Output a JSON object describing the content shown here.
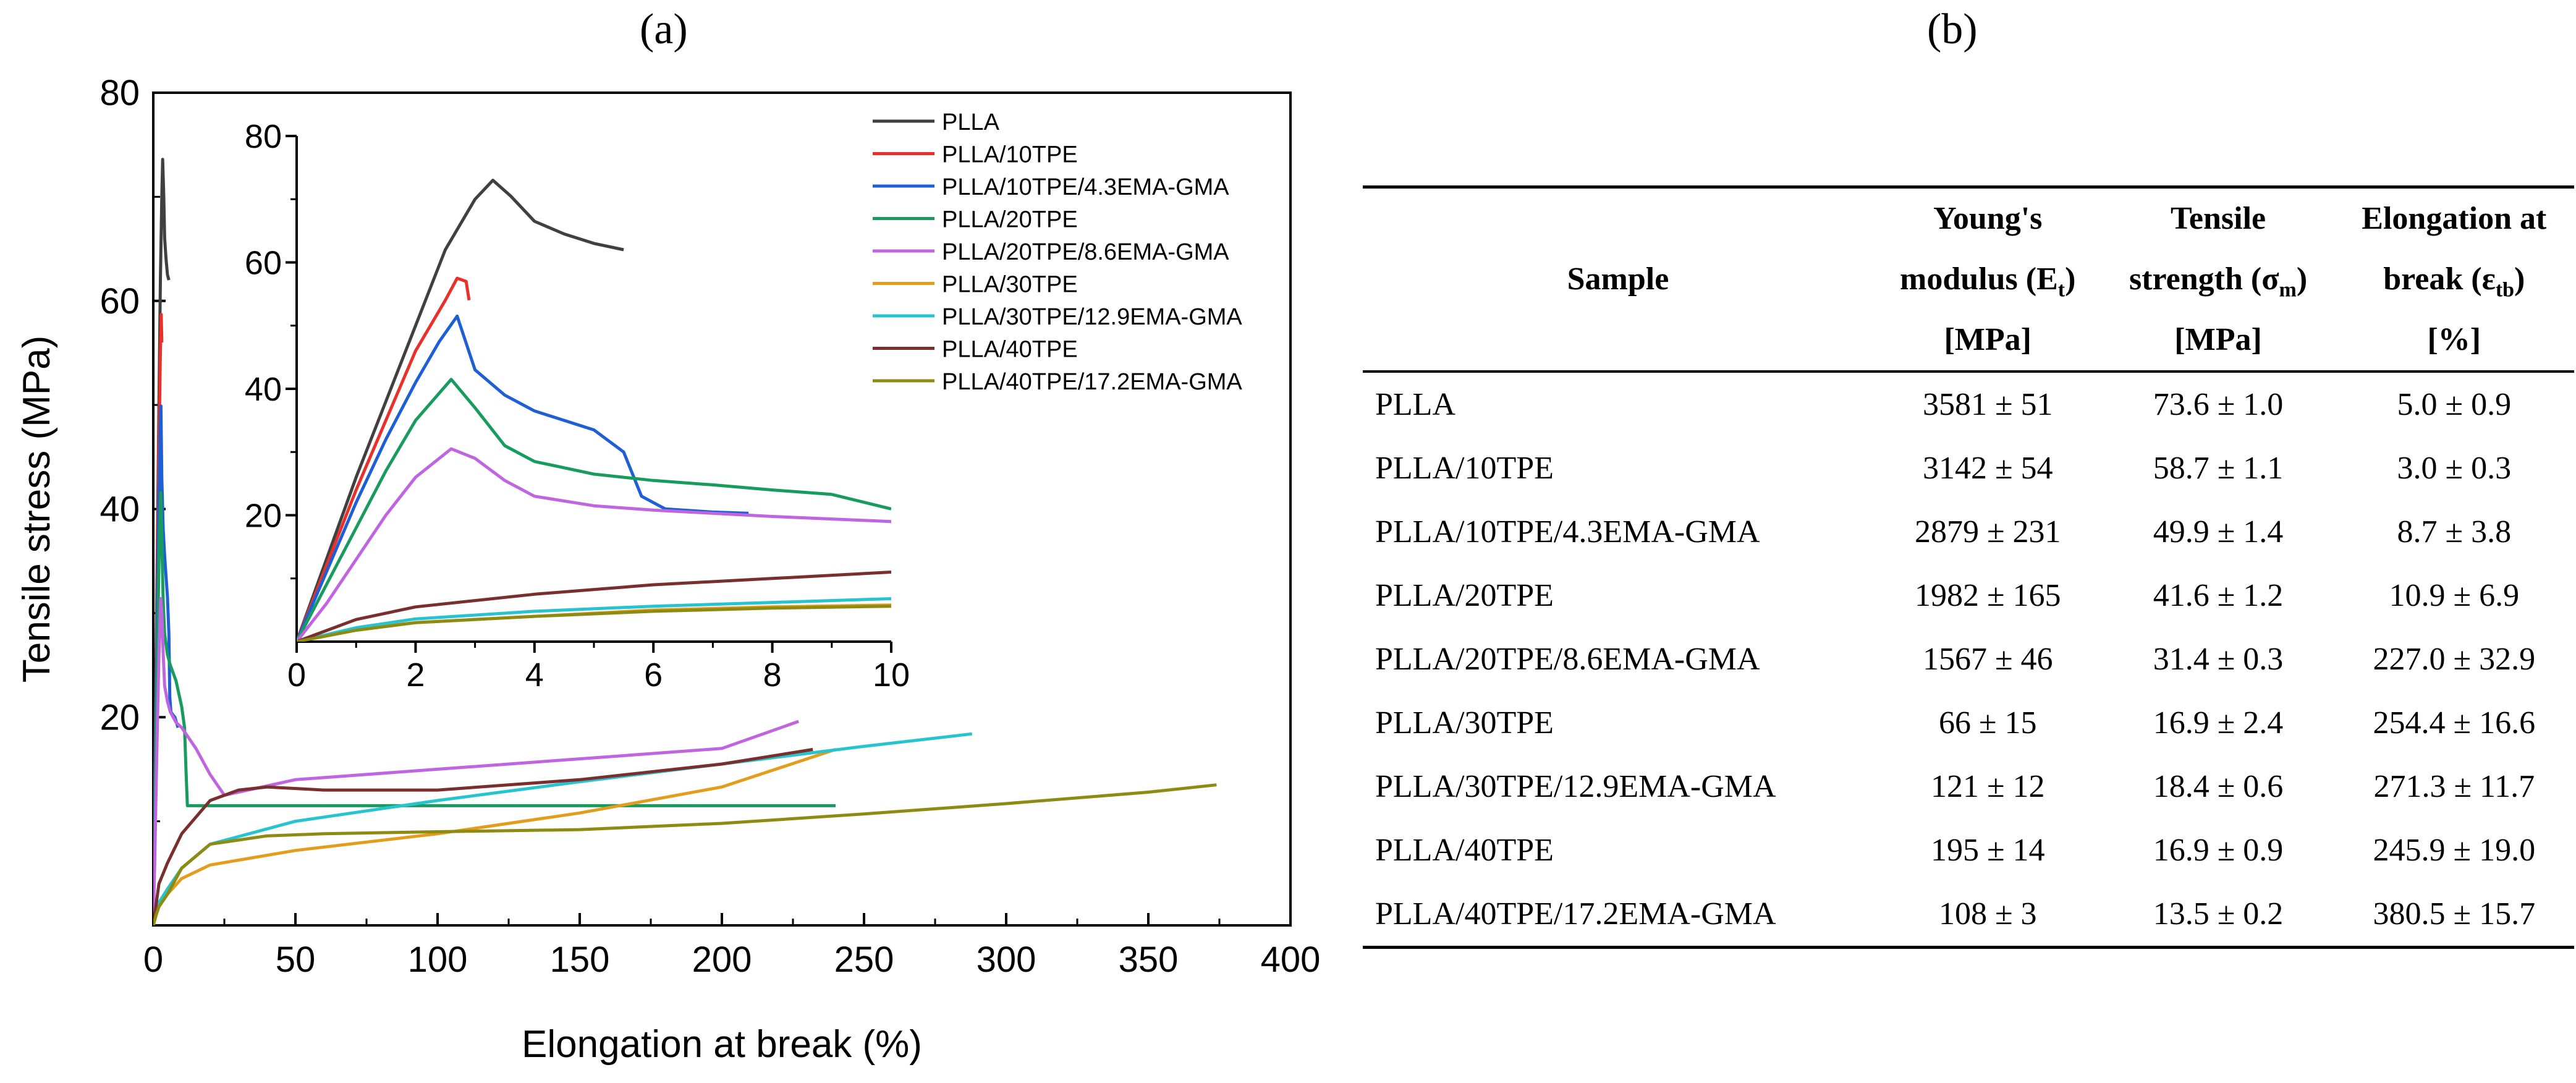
{
  "panel_labels": {
    "a": "(a)",
    "b": "(b)"
  },
  "chart_data": {
    "type": "line",
    "xlabel": "Elongation at break (%)",
    "ylabel": "Tensile stress (MPa)",
    "xlim": [
      0,
      400
    ],
    "ylim": [
      0,
      80
    ],
    "xticks": [
      0,
      50,
      100,
      150,
      200,
      250,
      300,
      350,
      400
    ],
    "yticks": [
      20,
      40,
      60,
      80
    ],
    "legend_position": "top-right",
    "series": [
      {
        "name": "PLLA",
        "color": "#404040",
        "x": [
          0,
          0.5,
          1,
          1.5,
          2,
          2.5,
          3,
          3.3,
          3.7,
          4,
          4.5,
          5,
          5.5
        ],
        "y": [
          0,
          13,
          26,
          38,
          50,
          62,
          70,
          73.6,
          70,
          66,
          64,
          62.5,
          62
        ]
      },
      {
        "name": "PLLA/10TPE",
        "color": "#e8312b",
        "x": [
          0,
          0.5,
          1,
          1.5,
          2,
          2.5,
          2.8,
          3.0
        ],
        "y": [
          0,
          12,
          24,
          35,
          46,
          55,
          58.7,
          56
        ]
      },
      {
        "name": "PLLA/10TPE/4.3EMA-GMA",
        "color": "#1f5fd6",
        "x": [
          0,
          0.5,
          1,
          1.5,
          2,
          2.5,
          2.7,
          3,
          3.5,
          4,
          4.5,
          5,
          5.5,
          5.8,
          6.2,
          7,
          7.6,
          8.7
        ],
        "y": [
          0,
          11,
          22,
          32,
          41,
          48,
          49.9,
          43,
          38,
          35.5,
          33.5,
          31.5,
          28,
          22,
          20.5,
          20.2,
          20,
          19
        ]
      },
      {
        "name": "PLLA/20TPE",
        "color": "#179c5d",
        "x": [
          0,
          0.5,
          1,
          1.5,
          2,
          2.6,
          3,
          3.5,
          4,
          5,
          6,
          8,
          10,
          11,
          11.5,
          12,
          15,
          30,
          60,
          120,
          200,
          240
        ],
        "y": [
          0,
          9,
          18,
          27,
          35,
          41.6,
          37,
          31,
          28,
          26,
          25,
          23.5,
          21,
          19,
          15,
          11.5,
          11.5,
          11.5,
          11.5,
          11.5,
          11.5,
          11.5
        ]
      },
      {
        "name": "PLLA/20TPE/8.6EMA-GMA",
        "color": "#c065e0",
        "x": [
          0,
          0.5,
          1,
          1.5,
          2,
          2.6,
          3,
          3.5,
          4,
          5,
          6,
          8,
          10,
          15,
          20,
          25,
          30,
          50,
          100,
          150,
          200,
          227
        ],
        "y": [
          0,
          6,
          13,
          20,
          26,
          31.4,
          30,
          26,
          23,
          21.5,
          20.5,
          19.5,
          19,
          17,
          14.5,
          12.5,
          12.8,
          14,
          15,
          16,
          17,
          19.6
        ]
      },
      {
        "name": "PLLA/30TPE",
        "color": "#e39d1d",
        "x": [
          0,
          1,
          2,
          5,
          10,
          20,
          50,
          100,
          150,
          200,
          240
        ],
        "y": [
          0,
          1,
          1.8,
          3,
          4.5,
          5.8,
          7.2,
          8.8,
          10.8,
          13.3,
          16.9
        ]
      },
      {
        "name": "PLLA/30TPE/12.9EMA-GMA",
        "color": "#27c4cf",
        "x": [
          0,
          1,
          2,
          5,
          10,
          20,
          50,
          100,
          150,
          200,
          250,
          288
        ],
        "y": [
          0,
          1.2,
          2.2,
          3.5,
          5.5,
          7.8,
          10,
          12,
          13.8,
          15.5,
          17.2,
          18.4
        ]
      },
      {
        "name": "PLLA/40TPE",
        "color": "#7a2f2f",
        "x": [
          0,
          1,
          2,
          5,
          10,
          20,
          30,
          40,
          60,
          100,
          150,
          200,
          232
        ],
        "y": [
          0,
          2,
          4,
          6,
          8.8,
          12,
          13,
          13.3,
          13,
          13,
          14,
          15.5,
          16.9
        ]
      },
      {
        "name": "PLLA/40TPE/17.2EMA-GMA",
        "color": "#8e8b13",
        "x": [
          0,
          1,
          2,
          5,
          10,
          20,
          40,
          60,
          100,
          150,
          200,
          250,
          300,
          350,
          374
        ],
        "y": [
          0,
          1,
          1.8,
          3,
          5.5,
          7.8,
          8.6,
          8.8,
          9,
          9.2,
          9.8,
          10.7,
          11.7,
          12.8,
          13.5
        ]
      }
    ],
    "inset": {
      "xlim": [
        0,
        10
      ],
      "ylim": [
        0,
        80
      ],
      "xticks": [
        0,
        2,
        4,
        6,
        8,
        10
      ],
      "yticks": [
        20,
        40,
        60,
        80
      ],
      "series": [
        {
          "name": "PLLA",
          "color": "#404040",
          "x": [
            0,
            0.5,
            1,
            1.5,
            2,
            2.5,
            3,
            3.3,
            3.6,
            4,
            4.5,
            5,
            5.5
          ],
          "y": [
            0,
            13,
            26,
            38,
            50,
            62,
            70,
            73,
            70.5,
            66.5,
            64.5,
            63,
            62
          ]
        },
        {
          "name": "PLLA/10TPE",
          "color": "#e8312b",
          "x": [
            0,
            0.5,
            1,
            1.5,
            2,
            2.5,
            2.7,
            2.85,
            2.9
          ],
          "y": [
            0,
            12,
            24,
            35,
            46,
            54,
            57.5,
            57,
            54
          ]
        },
        {
          "name": "PLLA/10TPE/4.3EMA-GMA",
          "color": "#1f5fd6",
          "x": [
            0,
            0.5,
            1,
            1.5,
            2,
            2.4,
            2.7,
            3,
            3.5,
            4,
            4.5,
            5,
            5.5,
            5.8,
            6.2,
            7,
            7.6
          ],
          "y": [
            0,
            11,
            22,
            32,
            41,
            47.5,
            51.5,
            43,
            39,
            36.5,
            35,
            33.5,
            30,
            23,
            21,
            20.5,
            20.3
          ]
        },
        {
          "name": "PLLA/20TPE",
          "color": "#179c5d",
          "x": [
            0,
            0.5,
            1,
            1.5,
            2,
            2.6,
            3,
            3.5,
            4,
            5,
            6,
            7,
            8,
            9,
            10
          ],
          "y": [
            0,
            9,
            18,
            27,
            35,
            41.5,
            37,
            31,
            28.5,
            26.5,
            25.5,
            24.8,
            24,
            23.3,
            21
          ]
        },
        {
          "name": "PLLA/20TPE/8.6EMA-GMA",
          "color": "#c065e0",
          "x": [
            0,
            0.5,
            1,
            1.5,
            2,
            2.6,
            3,
            3.5,
            4,
            5,
            6,
            7,
            8,
            9,
            10
          ],
          "y": [
            0,
            6,
            13,
            20,
            26,
            30.5,
            29,
            25.5,
            23,
            21.5,
            20.8,
            20.3,
            19.8,
            19.4,
            19
          ]
        },
        {
          "name": "PLLA/30TPE",
          "color": "#e39d1d",
          "x": [
            0,
            1,
            2,
            4,
            6,
            8,
            10
          ],
          "y": [
            0,
            2,
            3,
            4,
            5,
            5.5,
            5.8
          ]
        },
        {
          "name": "PLLA/30TPE/12.9EMA-GMA",
          "color": "#27c4cf",
          "x": [
            0,
            1,
            2,
            4,
            6,
            8,
            10
          ],
          "y": [
            0,
            2.2,
            3.6,
            4.8,
            5.6,
            6.2,
            6.8
          ]
        },
        {
          "name": "PLLA/40TPE",
          "color": "#7a2f2f",
          "x": [
            0,
            1,
            2,
            4,
            6,
            8,
            10
          ],
          "y": [
            0,
            3.5,
            5.5,
            7.5,
            9,
            10,
            11
          ]
        },
        {
          "name": "PLLA/40TPE/17.2EMA-GMA",
          "color": "#8e8b13",
          "x": [
            0,
            1,
            2,
            4,
            6,
            8,
            10
          ],
          "y": [
            0,
            1.8,
            3,
            4,
            4.8,
            5.3,
            5.6
          ]
        }
      ]
    }
  },
  "table": {
    "headers": {
      "sample": "Sample",
      "youngs_l1": "Young's",
      "youngs_l2": "modulus (E",
      "youngs_sub": "t",
      "youngs_l2_end": ")",
      "youngs_l3": "[MPa]",
      "tensile_l1": "Tensile",
      "tensile_l2": "strength (σ",
      "tensile_sub": "m",
      "tensile_l2_end": ")",
      "tensile_l3": "[MPa]",
      "elong_l1": "Elongation at",
      "elong_l2": "break (ε",
      "elong_sub": "tb",
      "elong_l2_end": ")",
      "elong_l3": "[%]"
    },
    "rows": [
      {
        "sample": "PLLA",
        "modulus": "3581 ± 51",
        "strength": "73.6 ± 1.0",
        "elongation": "5.0 ± 0.9"
      },
      {
        "sample": "PLLA/10TPE",
        "modulus": "3142 ± 54",
        "strength": "58.7 ± 1.1",
        "elongation": "3.0 ± 0.3"
      },
      {
        "sample": "PLLA/10TPE/4.3EMA-GMA",
        "modulus": "2879 ± 231",
        "strength": "49.9 ± 1.4",
        "elongation": "8.7 ± 3.8"
      },
      {
        "sample": "PLLA/20TPE",
        "modulus": "1982 ± 165",
        "strength": "41.6 ± 1.2",
        "elongation": "10.9 ± 6.9"
      },
      {
        "sample": "PLLA/20TPE/8.6EMA-GMA",
        "modulus": "1567 ± 46",
        "strength": "31.4 ± 0.3",
        "elongation": "227.0 ± 32.9"
      },
      {
        "sample": "PLLA/30TPE",
        "modulus": "66 ± 15",
        "strength": "16.9 ± 2.4",
        "elongation": "254.4 ± 16.6"
      },
      {
        "sample": "PLLA/30TPE/12.9EMA-GMA",
        "modulus": "121 ± 12",
        "strength": "18.4 ± 0.6",
        "elongation": "271.3 ± 11.7"
      },
      {
        "sample": "PLLA/40TPE",
        "modulus": "195 ± 14",
        "strength": "16.9 ± 0.9",
        "elongation": "245.9 ± 19.0"
      },
      {
        "sample": "PLLA/40TPE/17.2EMA-GMA",
        "modulus": "108 ± 3",
        "strength": "13.5 ± 0.2",
        "elongation": "380.5 ± 15.7"
      }
    ]
  }
}
